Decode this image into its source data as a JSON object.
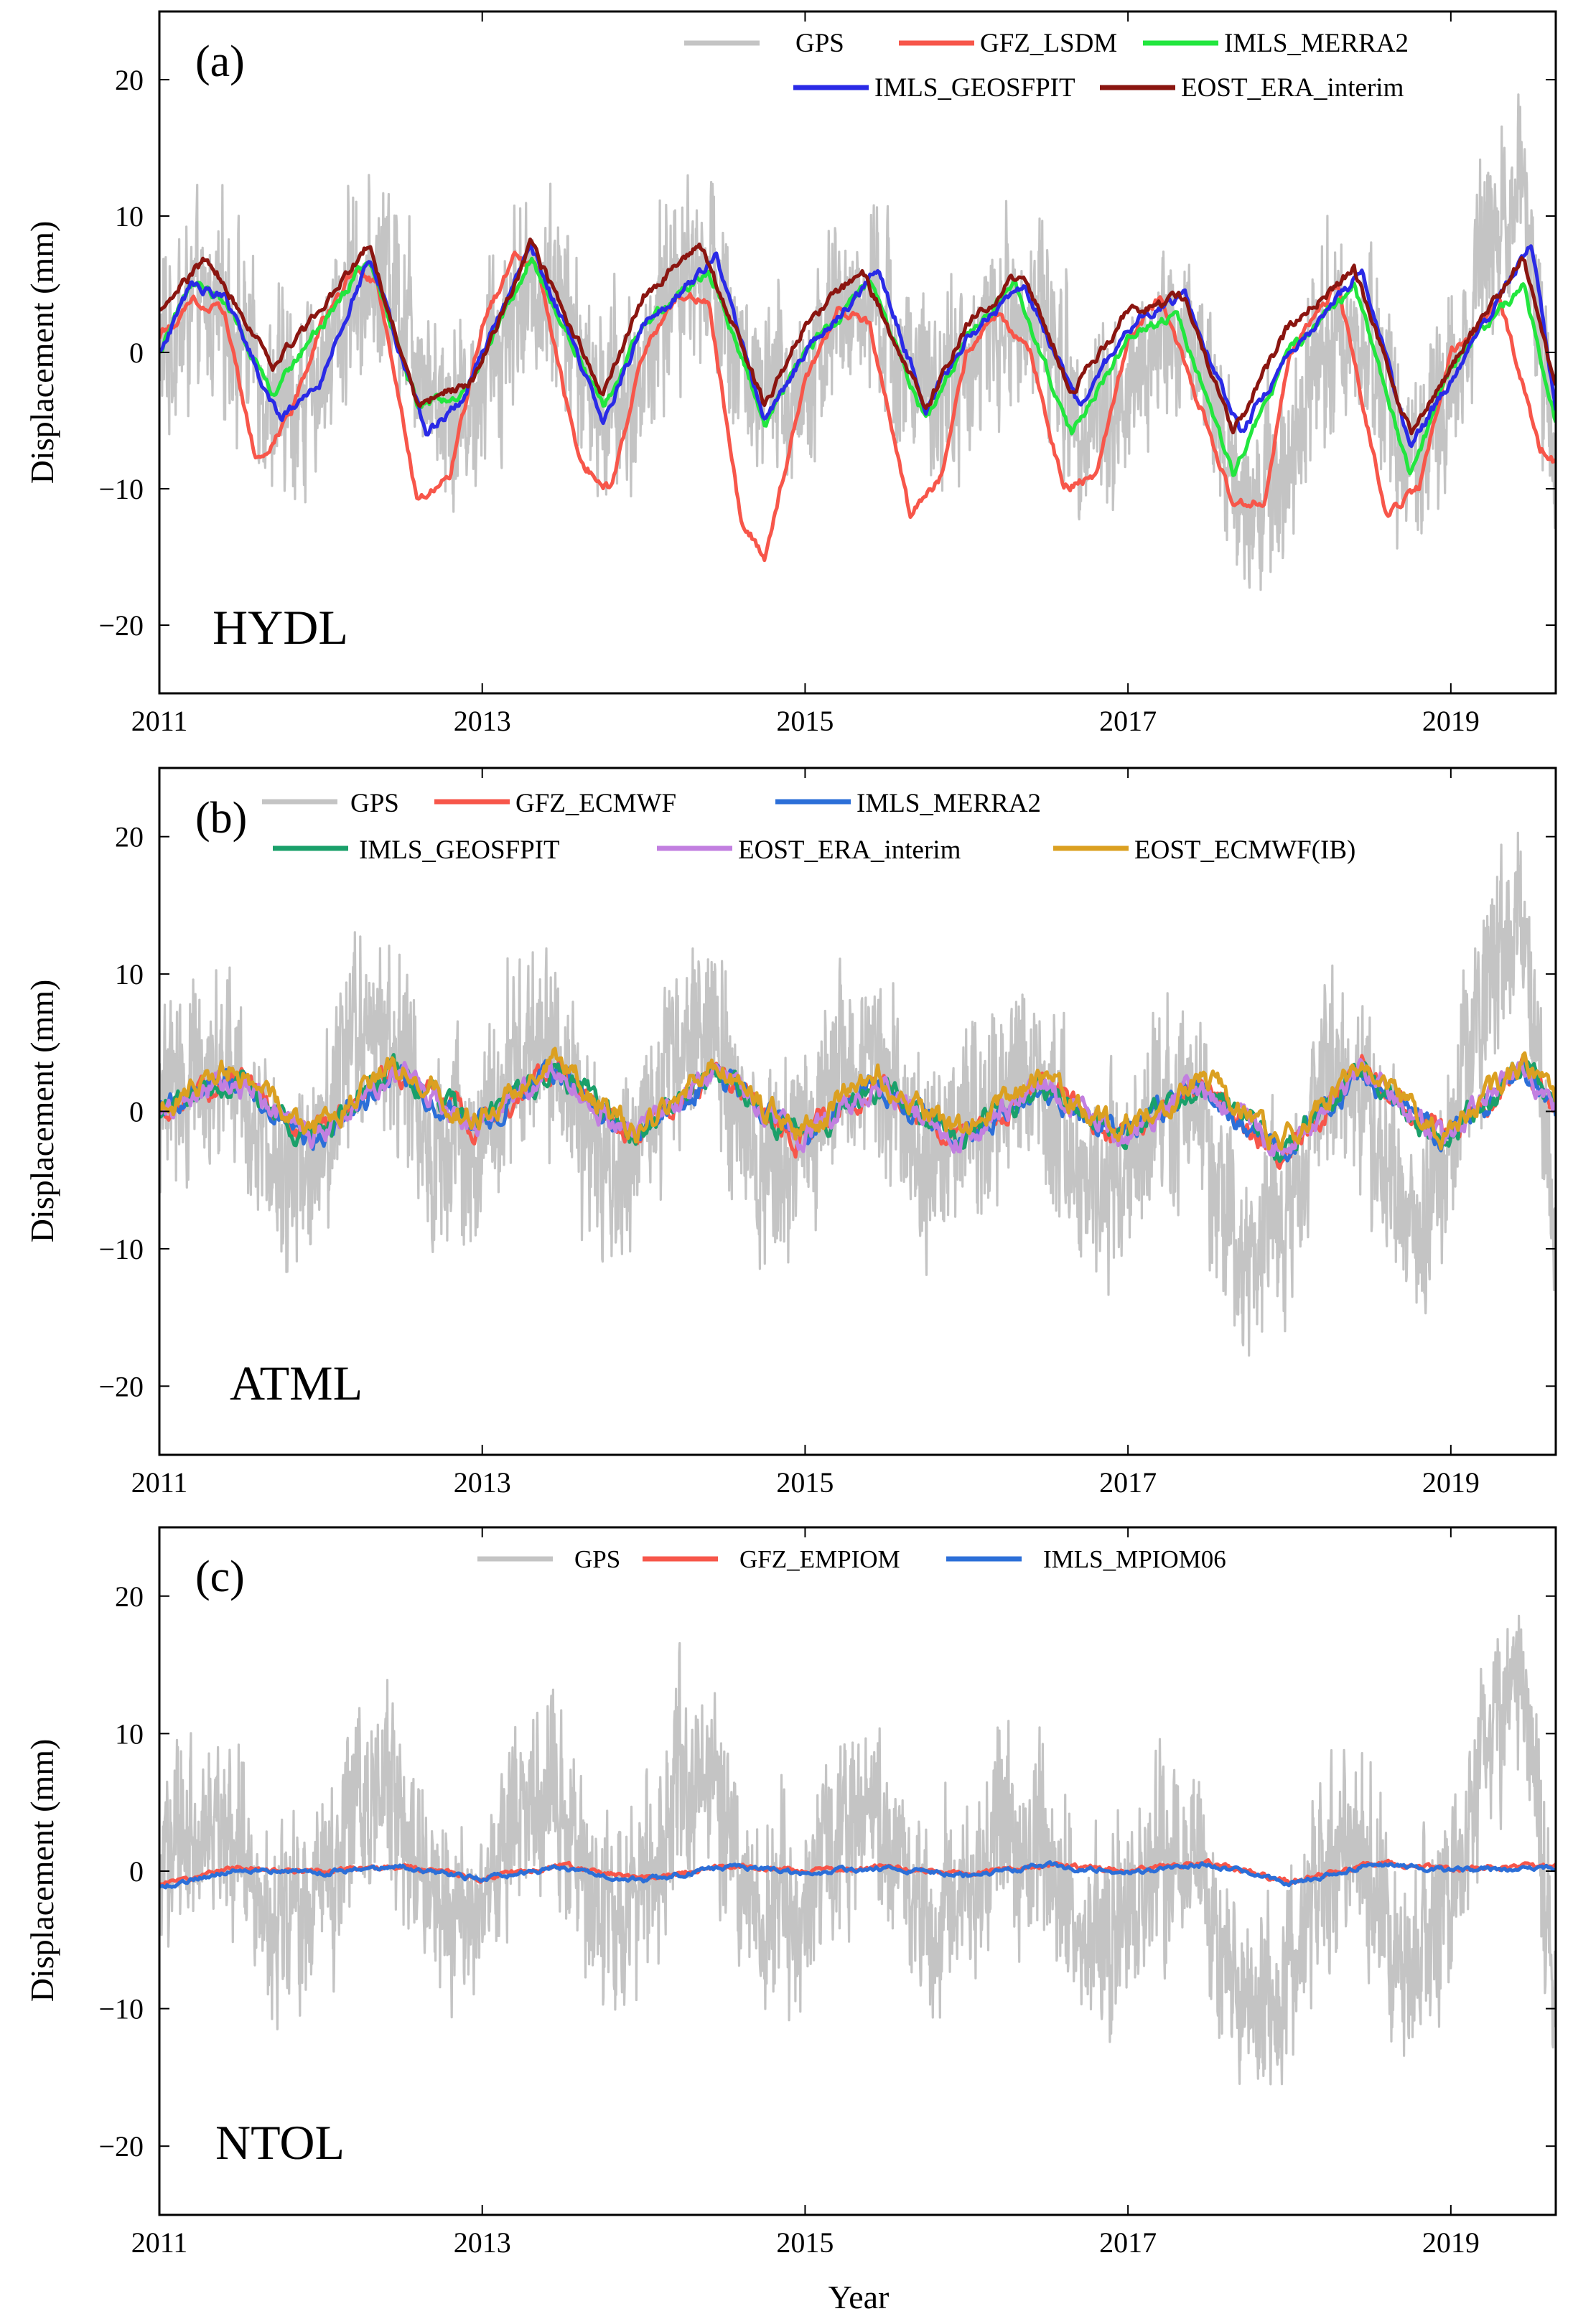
{
  "figure": {
    "xlabel": "Year",
    "ylabel": "Displacement (mm)",
    "xlim": [
      2011,
      2019.65
    ],
    "ylim": [
      -25,
      25
    ],
    "xticks": [
      2011,
      2013,
      2015,
      2017,
      2019
    ],
    "xtick_labels": [
      "2011",
      "2013",
      "2015",
      "2017",
      "2019"
    ],
    "yticks": [
      -20,
      -10,
      0,
      10,
      20
    ],
    "ytick_labels": [
      "−20",
      "−10",
      "0",
      "10",
      "20"
    ]
  },
  "chart_data": [
    {
      "type": "line",
      "panel_tag": "(a)",
      "panel_name": "HYDL",
      "xlabel": "",
      "ylabel": "Displacement (mm)",
      "xlim": [
        2011,
        2019.65
      ],
      "ylim": [
        -25,
        25
      ],
      "legend_position": "top-right",
      "series": [
        {
          "name": "GPS",
          "color": "#c4c4c4",
          "kind": "noisy-observation",
          "x": [
            2011.0,
            2011.2,
            2011.45,
            2011.7,
            2011.95,
            2012.2,
            2012.45,
            2012.7,
            2012.95,
            2013.2,
            2013.45,
            2013.7,
            2013.95,
            2014.2,
            2014.45,
            2014.7,
            2014.95,
            2015.2,
            2015.45,
            2015.7,
            2015.95,
            2016.2,
            2016.45,
            2016.7,
            2016.95,
            2017.2,
            2017.45,
            2017.7,
            2017.95,
            2018.2,
            2018.45,
            2018.7,
            2018.95,
            2019.2,
            2019.45,
            2019.65
          ],
          "y": [
            0,
            3,
            3,
            -4,
            -3,
            5,
            6,
            -3,
            -4,
            4,
            5,
            -4,
            -3,
            6,
            6,
            -4,
            -3,
            3,
            3,
            -3,
            -2,
            2,
            3,
            -5,
            -4,
            1,
            0,
            -11,
            -9,
            1,
            2,
            -8,
            -5,
            8,
            14,
            -10
          ]
        },
        {
          "name": "GFZ_LSDM",
          "color": "#f7564a",
          "x": [
            2011.0,
            2011.2,
            2011.4,
            2011.6,
            2011.8,
            2012.0,
            2012.2,
            2012.35,
            2012.6,
            2012.8,
            2013.0,
            2013.2,
            2013.35,
            2013.6,
            2013.8,
            2014.0,
            2014.2,
            2014.4,
            2014.6,
            2014.75,
            2015.0,
            2015.2,
            2015.4,
            2015.65,
            2015.85,
            2016.0,
            2016.2,
            2016.4,
            2016.6,
            2016.8,
            2017.0,
            2017.2,
            2017.45,
            2017.65,
            2017.85,
            2018.0,
            2018.3,
            2018.6,
            2018.8,
            2019.0,
            2019.3,
            2019.55,
            2019.65
          ],
          "y": [
            1,
            4,
            3,
            -8,
            -5,
            2,
            6,
            5,
            -11,
            -9,
            2,
            7,
            6,
            -8,
            -10,
            0,
            4,
            4,
            -12,
            -15,
            -2,
            3,
            2,
            -12,
            -9,
            0,
            3,
            0,
            -10,
            -9,
            1,
            4,
            -4,
            -11,
            -11,
            0,
            5,
            -12,
            -10,
            0,
            4,
            -7,
            -8
          ]
        },
        {
          "name": "IMLS_MERRA2",
          "color": "#22e63e",
          "x": [
            2011.0,
            2011.2,
            2011.4,
            2011.7,
            2012.0,
            2012.3,
            2012.6,
            2012.9,
            2013.3,
            2013.75,
            2014.0,
            2014.4,
            2014.75,
            2015.0,
            2015.4,
            2015.75,
            2016.0,
            2016.3,
            2016.65,
            2017.0,
            2017.3,
            2017.65,
            2018.0,
            2018.4,
            2018.75,
            2019.0,
            2019.45,
            2019.65
          ],
          "y": [
            0,
            5,
            4,
            -3,
            2,
            7,
            -4,
            -3,
            7,
            -4,
            2,
            6,
            -5,
            0,
            5,
            -5,
            1,
            5,
            -6,
            1,
            3,
            -9,
            0,
            5,
            -9,
            -1,
            5,
            -5
          ]
        },
        {
          "name": "IMLS_GEOSFPIT",
          "color": "#2a2ae6",
          "x": [
            2011.0,
            2011.2,
            2011.4,
            2011.75,
            2012.0,
            2012.3,
            2012.65,
            2012.9,
            2013.3,
            2013.75,
            2014.0,
            2014.45,
            2014.75,
            2015.0,
            2015.45,
            2015.75,
            2016.0,
            2016.35,
            2016.7,
            2017.0,
            2017.35,
            2017.7,
            2018.0,
            2018.45,
            2018.75,
            2019.0,
            2019.5,
            2019.65
          ],
          "y": [
            0,
            5,
            4,
            -5,
            -2,
            7,
            -6,
            -3,
            8,
            -5,
            2,
            7,
            -5,
            0,
            6,
            -4,
            1,
            5,
            -4,
            2,
            4,
            -6,
            0,
            6,
            -7,
            -2,
            8,
            -4
          ]
        },
        {
          "name": "EOST_ERA_interim",
          "color": "#8a1510",
          "x": [
            2011.0,
            2011.3,
            2011.7,
            2012.0,
            2012.3,
            2012.6,
            2012.95,
            2013.3,
            2013.75,
            2014.0,
            2014.35,
            2014.75,
            2015.0,
            2015.35,
            2015.75,
            2016.0,
            2016.35,
            2016.65,
            2017.0,
            2017.35,
            2017.65,
            2018.0,
            2018.4,
            2018.75,
            2019.0,
            2019.45,
            2019.65
          ],
          "y": [
            3,
            7,
            -1,
            3,
            8,
            -4,
            -2,
            8,
            -3,
            4,
            8,
            -4,
            2,
            6,
            -4,
            2,
            6,
            -3,
            3,
            4,
            -6,
            2,
            6,
            -6,
            -1,
            7,
            -3
          ]
        }
      ]
    },
    {
      "type": "line",
      "panel_tag": "(b)",
      "panel_name": "ATML",
      "xlabel": "",
      "ylabel": "Displacement (mm)",
      "xlim": [
        2011,
        2019.65
      ],
      "ylim": [
        -25,
        25
      ],
      "legend_position": "top",
      "series": [
        {
          "name": "GPS",
          "color": "#c4c4c4",
          "kind": "noisy-observation",
          "x": [
            2011.0,
            2011.2,
            2011.45,
            2011.7,
            2011.95,
            2012.2,
            2012.45,
            2012.7,
            2012.95,
            2013.2,
            2013.45,
            2013.7,
            2013.95,
            2014.2,
            2014.45,
            2014.7,
            2014.95,
            2015.2,
            2015.45,
            2015.7,
            2015.95,
            2016.2,
            2016.45,
            2016.7,
            2016.95,
            2017.2,
            2017.45,
            2017.7,
            2017.95,
            2018.2,
            2018.45,
            2018.7,
            2018.95,
            2019.2,
            2019.45,
            2019.65
          ],
          "y": [
            0,
            3,
            3,
            -4,
            -3,
            5,
            6,
            -3,
            -4,
            4,
            5,
            -4,
            -3,
            6,
            6,
            -4,
            -3,
            3,
            3,
            -3,
            -2,
            2,
            3,
            -5,
            -4,
            1,
            0,
            -11,
            -9,
            1,
            2,
            -8,
            -5,
            8,
            14,
            -10
          ]
        },
        {
          "name": "GFZ_ECMWF",
          "color": "#f7564a",
          "x": [
            2011.0,
            2011.45,
            2011.95,
            2012.45,
            2012.95,
            2013.45,
            2013.95,
            2014.45,
            2014.95,
            2015.45,
            2015.95,
            2016.45,
            2016.95,
            2017.45,
            2017.95,
            2018.45,
            2018.95,
            2019.45,
            2019.65
          ],
          "y": [
            0,
            2.5,
            -2,
            3,
            -1,
            3,
            -2,
            3,
            -2,
            2,
            -2,
            2,
            -2,
            2,
            -3,
            3,
            -2,
            3,
            0
          ]
        },
        {
          "name": "IMLS_MERRA2",
          "color": "#2c6fd8",
          "x": [
            2011.0,
            2011.45,
            2011.95,
            2012.45,
            2012.95,
            2013.45,
            2013.95,
            2014.45,
            2014.95,
            2015.45,
            2015.95,
            2016.45,
            2016.95,
            2017.45,
            2017.95,
            2018.45,
            2018.95,
            2019.45,
            2019.65
          ],
          "y": [
            0,
            2.5,
            -2,
            3,
            -1,
            3,
            -2,
            3,
            -2,
            2,
            -2,
            2,
            -2,
            2,
            -3,
            3,
            -2,
            3,
            0
          ]
        },
        {
          "name": "IMLS_GEOSFPIT",
          "color": "#1aa06a",
          "x": [
            2011.0,
            2011.45,
            2011.95,
            2012.45,
            2012.95,
            2013.45,
            2013.95,
            2014.45,
            2014.95,
            2015.45,
            2015.95,
            2016.45,
            2016.95,
            2017.45,
            2017.95,
            2018.45,
            2018.95,
            2019.45,
            2019.65
          ],
          "y": [
            0,
            2.5,
            -2,
            3,
            -1,
            3,
            -2,
            3,
            -2,
            2,
            -2,
            2,
            -2,
            2,
            -3,
            3,
            -2,
            3,
            0
          ]
        },
        {
          "name": "EOST_ERA_interim",
          "color": "#c27fe0",
          "x": [
            2011.0,
            2011.45,
            2011.95,
            2012.45,
            2012.95,
            2013.45,
            2013.95,
            2014.45,
            2014.95,
            2015.45,
            2015.95,
            2016.45,
            2016.95,
            2017.45,
            2017.95,
            2018.45,
            2018.95,
            2019.45,
            2019.65
          ],
          "y": [
            0,
            2.5,
            -2,
            3,
            -1,
            3,
            -2,
            3,
            -2,
            2,
            -2,
            2,
            -2,
            2,
            -3,
            3,
            -2,
            3,
            0
          ]
        },
        {
          "name": "EOST_ECMWF(IB)",
          "color": "#dba021",
          "x": [
            2011.0,
            2011.45,
            2011.95,
            2012.45,
            2012.95,
            2013.45,
            2013.95,
            2014.45,
            2014.95,
            2015.45,
            2015.95,
            2016.45,
            2016.95,
            2017.45,
            2017.95,
            2018.45,
            2018.95,
            2019.45,
            2019.65
          ],
          "y": [
            0,
            3,
            -1.5,
            3.5,
            -0.5,
            3.5,
            -1.5,
            3.5,
            -1.5,
            2.5,
            -1.5,
            2.5,
            -1.5,
            2.5,
            -2.5,
            3.5,
            -1.5,
            3.5,
            1
          ]
        }
      ]
    },
    {
      "type": "line",
      "panel_tag": "(c)",
      "panel_name": "NTOL",
      "xlabel": "Year",
      "ylabel": "Displacement (mm)",
      "xlim": [
        2011,
        2019.65
      ],
      "ylim": [
        -25,
        25
      ],
      "legend_position": "top",
      "series": [
        {
          "name": "GPS",
          "color": "#c4c4c4",
          "kind": "noisy-observation",
          "x": [
            2011.0,
            2011.2,
            2011.45,
            2011.7,
            2011.95,
            2012.2,
            2012.45,
            2012.7,
            2012.95,
            2013.2,
            2013.45,
            2013.7,
            2013.95,
            2014.2,
            2014.45,
            2014.7,
            2014.95,
            2015.2,
            2015.45,
            2015.7,
            2015.95,
            2016.2,
            2016.45,
            2016.7,
            2016.95,
            2017.2,
            2017.45,
            2017.7,
            2017.95,
            2018.2,
            2018.45,
            2018.7,
            2018.95,
            2019.2,
            2019.45,
            2019.65
          ],
          "y": [
            0,
            3,
            3,
            -4,
            -3,
            5,
            6,
            -3,
            -4,
            4,
            5,
            -4,
            -3,
            6,
            6,
            -4,
            -3,
            3,
            3,
            -3,
            -2,
            2,
            3,
            -5,
            -4,
            1,
            0,
            -11,
            -9,
            1,
            2,
            -8,
            -5,
            8,
            14,
            -10
          ]
        },
        {
          "name": "GFZ_EMPIOM",
          "color": "#f7564a",
          "x": [
            2011.0,
            2011.5,
            2012.0,
            2012.5,
            2013.0,
            2013.5,
            2014.0,
            2014.5,
            2015.0,
            2015.5,
            2016.0,
            2016.5,
            2017.0,
            2017.5,
            2018.0,
            2018.5,
            2019.0,
            2019.65
          ],
          "y": [
            -1,
            0.3,
            0,
            0.4,
            -0.5,
            0.4,
            -0.6,
            0.4,
            0,
            0.3,
            -0.2,
            0.5,
            0,
            0.6,
            -0.8,
            0.6,
            0.2,
            0.3
          ]
        },
        {
          "name": "IMLS_MPIOM06",
          "color": "#2c6fd8",
          "x": [
            2011.0,
            2011.5,
            2012.0,
            2012.5,
            2013.0,
            2013.5,
            2014.0,
            2014.5,
            2015.0,
            2015.5,
            2016.0,
            2016.5,
            2017.0,
            2017.5,
            2018.0,
            2018.5,
            2019.0,
            2019.65
          ],
          "y": [
            -1.2,
            0.2,
            -0.1,
            0.3,
            -0.6,
            0.3,
            -0.7,
            0.3,
            -0.1,
            0.2,
            -0.3,
            0.4,
            -0.1,
            0.5,
            -0.9,
            0.5,
            0.1,
            0.2
          ]
        }
      ]
    }
  ]
}
